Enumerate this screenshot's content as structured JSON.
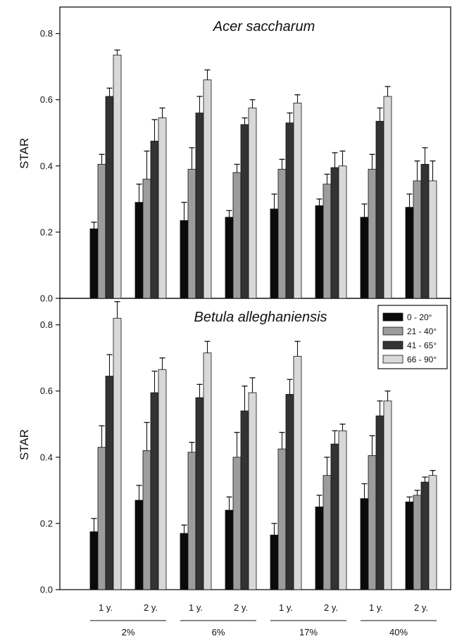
{
  "chart_data": [
    {
      "type": "bar",
      "title": "Acer saccharum",
      "ylabel": "STAR",
      "ylim": [
        0,
        0.88
      ],
      "yticks": [
        "0.0",
        "0.2",
        "0.4",
        "0.6",
        "0.8"
      ],
      "categories": [
        "1 y.",
        "2 y.",
        "1 y.",
        "2 y.",
        "1 y.",
        "2 y.",
        "1 y.",
        "2 y."
      ],
      "series": [
        {
          "name": "0 - 20°",
          "color": "#0a0a0a",
          "values": [
            0.21,
            0.29,
            0.235,
            0.245,
            0.27,
            0.28,
            0.245,
            0.275
          ],
          "errors": [
            0.02,
            0.055,
            0.055,
            0.02,
            0.045,
            0.02,
            0.04,
            0.04
          ]
        },
        {
          "name": "21 - 40°",
          "color": "#9c9c9c",
          "values": [
            0.405,
            0.36,
            0.39,
            0.38,
            0.39,
            0.345,
            0.39,
            0.355
          ],
          "errors": [
            0.03,
            0.085,
            0.065,
            0.025,
            0.03,
            0.03,
            0.045,
            0.06
          ]
        },
        {
          "name": "41 - 65°",
          "color": "#333333",
          "values": [
            0.61,
            0.475,
            0.56,
            0.525,
            0.53,
            0.395,
            0.535,
            0.405
          ],
          "errors": [
            0.025,
            0.065,
            0.05,
            0.02,
            0.03,
            0.045,
            0.04,
            0.05
          ]
        },
        {
          "name": "66 - 90°",
          "color": "#d8d8d8",
          "values": [
            0.735,
            0.545,
            0.66,
            0.575,
            0.59,
            0.4,
            0.61,
            0.355
          ],
          "errors": [
            0.015,
            0.03,
            0.03,
            0.025,
            0.025,
            0.045,
            0.03,
            0.06
          ]
        }
      ]
    },
    {
      "type": "bar",
      "title": "Betula alleghaniensis",
      "ylabel": "STAR",
      "ylim": [
        0,
        0.88
      ],
      "yticks": [
        "0.0",
        "0.2",
        "0.4",
        "0.6",
        "0.8"
      ],
      "categories": [
        "1 y.",
        "2 y.",
        "1 y.",
        "2 y.",
        "1 y.",
        "2 y.",
        "1 y.",
        "2 y."
      ],
      "series": [
        {
          "name": "0 - 20°",
          "color": "#0a0a0a",
          "values": [
            0.175,
            0.27,
            0.17,
            0.24,
            0.165,
            0.25,
            0.275,
            0.265
          ],
          "errors": [
            0.04,
            0.045,
            0.025,
            0.04,
            0.035,
            0.035,
            0.045,
            0.015
          ]
        },
        {
          "name": "21 - 40°",
          "color": "#9c9c9c",
          "values": [
            0.43,
            0.42,
            0.415,
            0.4,
            0.425,
            0.345,
            0.405,
            0.285
          ],
          "errors": [
            0.065,
            0.085,
            0.03,
            0.075,
            0.05,
            0.055,
            0.06,
            0.015
          ]
        },
        {
          "name": "41 - 65°",
          "color": "#333333",
          "values": [
            0.645,
            0.595,
            0.58,
            0.54,
            0.59,
            0.44,
            0.525,
            0.325
          ],
          "errors": [
            0.065,
            0.065,
            0.04,
            0.075,
            0.045,
            0.04,
            0.045,
            0.015
          ]
        },
        {
          "name": "66 - 90°",
          "color": "#d8d8d8",
          "values": [
            0.82,
            0.665,
            0.715,
            0.595,
            0.705,
            0.48,
            0.57,
            0.345
          ],
          "errors": [
            0.05,
            0.035,
            0.035,
            0.045,
            0.045,
            0.02,
            0.03,
            0.015
          ]
        }
      ],
      "legend": "top-right"
    }
  ],
  "groups": [
    "2%",
    "6%",
    "17%",
    "40%"
  ]
}
